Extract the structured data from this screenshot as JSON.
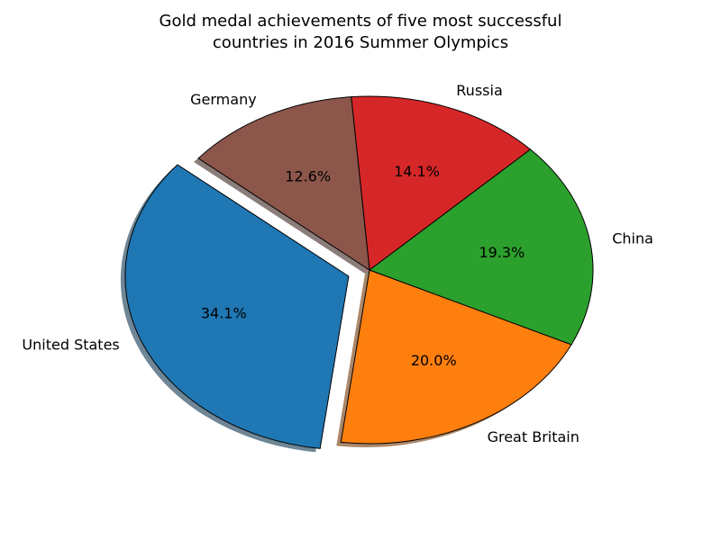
{
  "chart_data": {
    "type": "pie",
    "title": "Gold medal achievements of five most successful\ncountries in 2016 Summer Olympics",
    "categories": [
      "United States",
      "Great Britain",
      "China",
      "Russia",
      "Germany"
    ],
    "values": [
      34.1,
      20.0,
      19.3,
      14.1,
      12.6
    ],
    "value_labels": [
      "34.1%",
      "20.0%",
      "19.3%",
      "14.1%",
      "12.6%"
    ],
    "colors": [
      "#1f77b4",
      "#ff7f0e",
      "#2ca02c",
      "#d62728",
      "#8c564b"
    ],
    "explode": [
      0.1,
      0,
      0,
      0,
      0
    ],
    "startangle": 140,
    "shadow": true
  }
}
